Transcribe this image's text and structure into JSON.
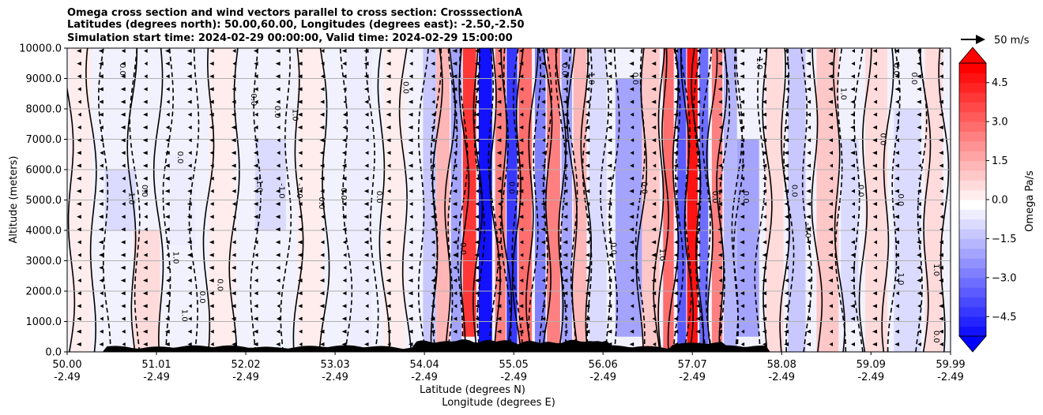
{
  "chart_data": {
    "type": "heatmap",
    "title": [
      "Omega cross section and wind vectors parallel to cross section: CrosssectionA",
      "Latitudes (degrees north): 50.00,60.00, Longitudes (degrees east): -2.50,-2.50",
      "Simulation start time: 2024-02-29 00:00:00, Valid time: 2024-02-29 15:00:00"
    ],
    "ylabel": "Altitude (meters)",
    "xlabel_lines": [
      "Latitude (degrees N)",
      "Longitude (degrees E)"
    ],
    "ylim": [
      0,
      10000
    ],
    "yticks": [
      0,
      1000,
      2000,
      3000,
      4000,
      5000,
      6000,
      7000,
      8000,
      9000,
      10000
    ],
    "ytick_labels": [
      "0.0",
      "1000.0",
      "2000.0",
      "3000.0",
      "4000.0",
      "5000.0",
      "6000.0",
      "7000.0",
      "8000.0",
      "9000.0",
      "10000.0"
    ],
    "xlim": [
      50.0,
      59.99
    ],
    "xticks": [
      {
        "lat": 50.0,
        "lat_label": "50.00",
        "lon_label": "-2.49"
      },
      {
        "lat": 51.01,
        "lat_label": "51.01",
        "lon_label": "-2.49"
      },
      {
        "lat": 52.02,
        "lat_label": "52.02",
        "lon_label": "-2.49"
      },
      {
        "lat": 53.03,
        "lat_label": "53.03",
        "lon_label": "-2.49"
      },
      {
        "lat": 54.04,
        "lat_label": "54.04",
        "lon_label": "-2.49"
      },
      {
        "lat": 55.05,
        "lat_label": "55.05",
        "lon_label": "-2.49"
      },
      {
        "lat": 56.06,
        "lat_label": "56.06",
        "lon_label": "-2.49"
      },
      {
        "lat": 57.07,
        "lat_label": "57.07",
        "lon_label": "-2.49"
      },
      {
        "lat": 58.08,
        "lat_label": "58.08",
        "lon_label": "-2.49"
      },
      {
        "lat": 59.09,
        "lat_label": "59.09",
        "lon_label": "-2.49"
      },
      {
        "lat": 59.99,
        "lat_label": "59.99",
        "lon_label": "-2.49"
      }
    ],
    "grid": "horizontal",
    "colorbar": {
      "label": "Omega Pa/s",
      "range": [
        -5.25,
        5.25
      ],
      "step": 0.375,
      "ticks": [
        -4.5,
        -3.0,
        -1.5,
        0.0,
        1.5,
        3.0,
        4.5
      ],
      "tick_labels": [
        "−4.5",
        "−3.0",
        "−1.5",
        "0.0",
        "1.5",
        "3.0",
        "4.5"
      ],
      "colormap": "bwr",
      "extend": "both",
      "min_color": "#0000ff",
      "mid_color": "#ffffff",
      "max_color": "#ff0000"
    },
    "quiver_key": {
      "label": "50 m/s",
      "speed": 50
    },
    "omega_bands": [
      {
        "lat": 50.15,
        "width": 0.25,
        "value": 0.3,
        "z": [
          0,
          10000
        ]
      },
      {
        "lat": 50.6,
        "width": 0.35,
        "value": -0.8,
        "z": [
          4000,
          6000
        ]
      },
      {
        "lat": 50.9,
        "width": 0.3,
        "value": 0.6,
        "z": [
          0,
          4000
        ]
      },
      {
        "lat": 51.3,
        "width": 0.3,
        "value": -0.5,
        "z": [
          3500,
          6500
        ]
      },
      {
        "lat": 51.75,
        "width": 0.3,
        "value": 0.5,
        "z": [
          0,
          10000
        ]
      },
      {
        "lat": 52.3,
        "width": 0.35,
        "value": -0.6,
        "z": [
          4000,
          7000
        ]
      },
      {
        "lat": 52.75,
        "width": 0.3,
        "value": 0.4,
        "z": [
          0,
          10000
        ]
      },
      {
        "lat": 53.3,
        "width": 0.3,
        "value": -0.4,
        "z": [
          0,
          10000
        ]
      },
      {
        "lat": 53.7,
        "width": 0.25,
        "value": 0.5,
        "z": [
          0,
          10000
        ]
      },
      {
        "lat": 54.1,
        "width": 0.15,
        "value": -1.2,
        "z": [
          0,
          10000
        ]
      },
      {
        "lat": 54.25,
        "width": 0.15,
        "value": 1.5,
        "z": [
          0,
          10000
        ]
      },
      {
        "lat": 54.4,
        "width": 0.12,
        "value": -2.0,
        "z": [
          0,
          10000
        ]
      },
      {
        "lat": 54.55,
        "width": 0.15,
        "value": 4.0,
        "z": [
          500,
          10000
        ]
      },
      {
        "lat": 54.73,
        "width": 0.15,
        "value": -5.0,
        "z": [
          0,
          10000
        ]
      },
      {
        "lat": 54.9,
        "width": 0.12,
        "value": 2.5,
        "z": [
          0,
          10000
        ]
      },
      {
        "lat": 55.03,
        "width": 0.12,
        "value": -4.0,
        "z": [
          0,
          10000
        ]
      },
      {
        "lat": 55.18,
        "width": 0.15,
        "value": 3.0,
        "z": [
          0,
          10000
        ]
      },
      {
        "lat": 55.35,
        "width": 0.12,
        "value": -2.5,
        "z": [
          0,
          10000
        ]
      },
      {
        "lat": 55.5,
        "width": 0.15,
        "value": 2.5,
        "z": [
          0,
          10000
        ]
      },
      {
        "lat": 55.65,
        "width": 0.12,
        "value": -2.0,
        "z": [
          0,
          10000
        ]
      },
      {
        "lat": 55.8,
        "width": 0.15,
        "value": 1.5,
        "z": [
          0,
          10000
        ]
      },
      {
        "lat": 56.0,
        "width": 0.2,
        "value": -0.6,
        "z": [
          0,
          10000
        ]
      },
      {
        "lat": 56.35,
        "width": 0.3,
        "value": -1.8,
        "z": [
          500,
          9000
        ]
      },
      {
        "lat": 56.6,
        "width": 0.2,
        "value": 1.2,
        "z": [
          0,
          10000
        ]
      },
      {
        "lat": 56.8,
        "width": 0.12,
        "value": 3.0,
        "z": [
          0,
          10000
        ]
      },
      {
        "lat": 56.95,
        "width": 0.1,
        "value": -3.5,
        "z": [
          0,
          10000
        ]
      },
      {
        "lat": 57.07,
        "width": 0.12,
        "value": 5.0,
        "z": [
          0,
          10000
        ]
      },
      {
        "lat": 57.2,
        "width": 0.1,
        "value": -3.0,
        "z": [
          0,
          10000
        ]
      },
      {
        "lat": 57.35,
        "width": 0.12,
        "value": 2.5,
        "z": [
          0,
          10000
        ]
      },
      {
        "lat": 57.5,
        "width": 0.15,
        "value": -1.5,
        "z": [
          0,
          10000
        ]
      },
      {
        "lat": 57.7,
        "width": 0.25,
        "value": -2.0,
        "z": [
          500,
          7000
        ]
      },
      {
        "lat": 58.0,
        "width": 0.2,
        "value": 0.8,
        "z": [
          0,
          10000
        ]
      },
      {
        "lat": 58.25,
        "width": 0.2,
        "value": -1.0,
        "z": [
          0,
          10000
        ]
      },
      {
        "lat": 58.6,
        "width": 0.25,
        "value": 1.2,
        "z": [
          0,
          10000
        ]
      },
      {
        "lat": 58.85,
        "width": 0.2,
        "value": -0.8,
        "z": [
          1000,
          7000
        ]
      },
      {
        "lat": 59.15,
        "width": 0.25,
        "value": 0.7,
        "z": [
          0,
          10000
        ]
      },
      {
        "lat": 59.5,
        "width": 0.3,
        "value": -0.6,
        "z": [
          0,
          8000
        ]
      },
      {
        "lat": 59.8,
        "width": 0.2,
        "value": 0.6,
        "z": [
          0,
          10000
        ]
      }
    ],
    "contour_labels": [
      {
        "text": "0.0",
        "lat": 50.6,
        "z": 9300
      },
      {
        "text": "-1.0",
        "lat": 50.7,
        "z": 5100
      },
      {
        "text": "0.0",
        "lat": 50.85,
        "z": 5300
      },
      {
        "text": "1.0",
        "lat": 51.2,
        "z": 3100
      },
      {
        "text": "0.0",
        "lat": 51.25,
        "z": 6400
      },
      {
        "text": "1.0",
        "lat": 51.3,
        "z": 1200
      },
      {
        "text": "0.0",
        "lat": 51.5,
        "z": 1800
      },
      {
        "text": "0.0",
        "lat": 51.7,
        "z": 2200
      },
      {
        "text": "0.0",
        "lat": 52.08,
        "z": 8300
      },
      {
        "text": "-1.0",
        "lat": 52.15,
        "z": 5500
      },
      {
        "text": "-1.0",
        "lat": 52.4,
        "z": 5300
      },
      {
        "text": "-1.0",
        "lat": 52.6,
        "z": 5300
      },
      {
        "text": "0.0",
        "lat": 52.35,
        "z": 7900
      },
      {
        "text": "1.0",
        "lat": 52.55,
        "z": 7800
      },
      {
        "text": "0.0",
        "lat": 52.85,
        "z": 4900
      },
      {
        "text": "0.0",
        "lat": 53.1,
        "z": 5200
      },
      {
        "text": "0.0",
        "lat": 53.5,
        "z": 5100
      },
      {
        "text": "0.0",
        "lat": 53.8,
        "z": 8700
      },
      {
        "text": "0.0",
        "lat": 54.45,
        "z": 3400
      },
      {
        "text": "0.0",
        "lat": 55.0,
        "z": 5400
      },
      {
        "text": "0.0",
        "lat": 55.6,
        "z": 9300
      },
      {
        "text": "1.0",
        "lat": 55.9,
        "z": 9000
      },
      {
        "text": "0.0",
        "lat": 56.15,
        "z": 3400
      },
      {
        "text": "0.0",
        "lat": 56.4,
        "z": 9000
      },
      {
        "text": "0.0",
        "lat": 56.5,
        "z": 5400
      },
      {
        "text": "1.0",
        "lat": 56.7,
        "z": 3200
      },
      {
        "text": "0.0",
        "lat": 57.3,
        "z": 5100
      },
      {
        "text": "0.0",
        "lat": 57.65,
        "z": 5100
      },
      {
        "text": "1.0",
        "lat": 57.8,
        "z": 9500
      },
      {
        "text": "0.0",
        "lat": 58.2,
        "z": 5300
      },
      {
        "text": "-1.0",
        "lat": 58.35,
        "z": 4000
      },
      {
        "text": "1.0",
        "lat": 58.75,
        "z": 8500
      },
      {
        "text": "0.0",
        "lat": 58.95,
        "z": 5300
      },
      {
        "text": "0.0",
        "lat": 59.2,
        "z": 7000
      },
      {
        "text": "0.0",
        "lat": 59.35,
        "z": 9300
      },
      {
        "text": "0.0",
        "lat": 59.55,
        "z": 9000
      },
      {
        "text": "0.0",
        "lat": 59.4,
        "z": 5000
      },
      {
        "text": "1.0",
        "lat": 59.4,
        "z": 2400
      },
      {
        "text": "0.0",
        "lat": 59.8,
        "z": 500
      },
      {
        "text": "1.0",
        "lat": 59.8,
        "z": 2700
      }
    ]
  }
}
